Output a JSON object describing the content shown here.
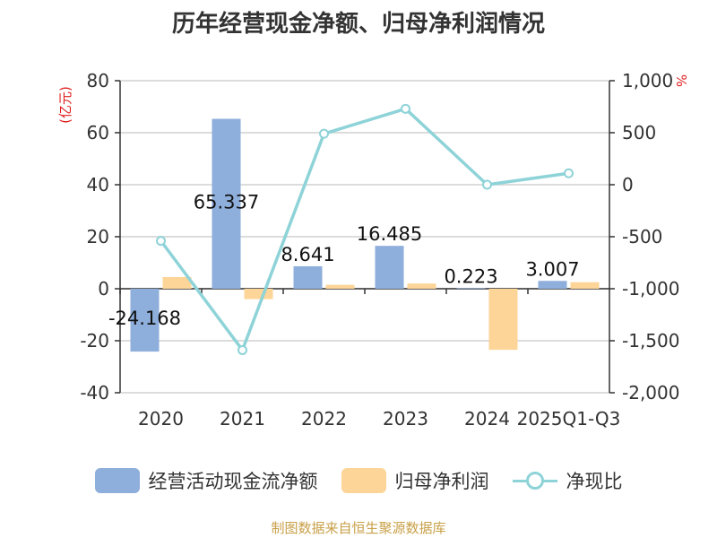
{
  "title": "历年经营现金净额、归母净利润情况",
  "source": "制图数据来自恒生聚源数据库",
  "chart_data": {
    "type": "bar",
    "title": "历年经营现金净额、归母净利润情况",
    "categories": [
      "2020",
      "2021",
      "2022",
      "2023",
      "2024",
      "2025Q1-Q3"
    ],
    "left_axis": {
      "unit": "(亿元)",
      "ylim": [
        -40,
        80
      ],
      "ticks": [
        -40,
        -20,
        0,
        20,
        40,
        60,
        80
      ]
    },
    "right_axis": {
      "unit": "%",
      "ylim": [
        -2000,
        1000
      ],
      "ticks": [
        -2000,
        -1500,
        -1000,
        -500,
        0,
        500,
        1000
      ],
      "tick_labels": [
        "-2,000",
        "-1,500",
        "-1,000",
        "-500",
        "0",
        "500",
        "1,000"
      ]
    },
    "series": [
      {
        "name": "经营活动现金流净额",
        "type": "bar",
        "axis": "left",
        "color": "#8eaedb",
        "values": [
          -24.168,
          65.337,
          8.641,
          16.485,
          0.223,
          3.007
        ],
        "labels": [
          "-24.168",
          "65.337",
          "8.641",
          "16.485",
          "0.223",
          "3.007"
        ]
      },
      {
        "name": "归母净利润",
        "type": "bar",
        "axis": "left",
        "color": "#fdd598",
        "values": [
          4.5,
          -4.0,
          1.5,
          2.0,
          -23.5,
          2.5
        ]
      },
      {
        "name": "净现比",
        "type": "line",
        "axis": "right",
        "color": "#8ed3d8",
        "values": [
          -540,
          -1590,
          490,
          730,
          0,
          110
        ]
      }
    ],
    "grid": true,
    "legend": "bottom"
  }
}
